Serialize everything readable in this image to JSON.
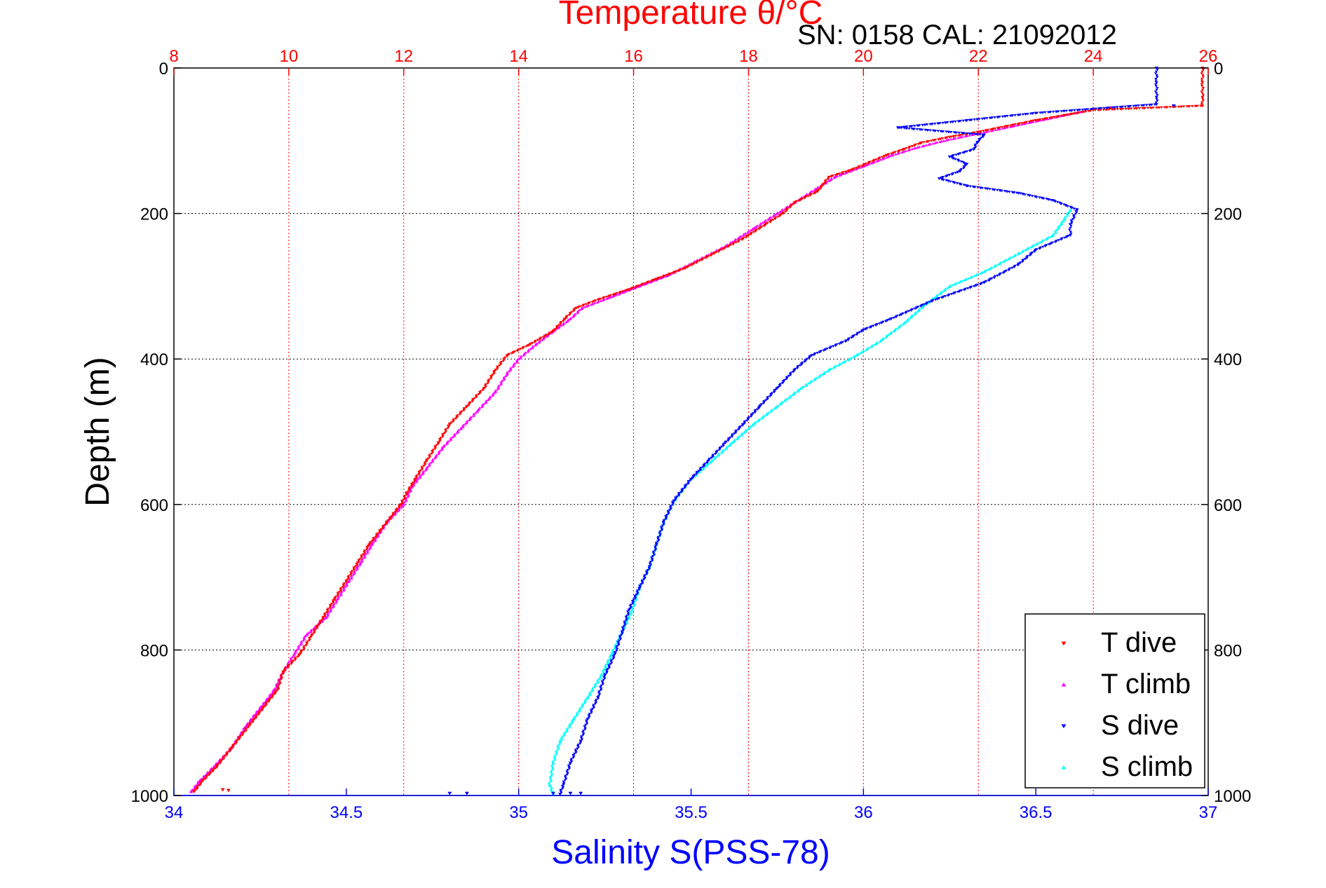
{
  "colors": {
    "temperature_axis": "#ff0000",
    "salinity_axis": "#0000ff",
    "depth_axis": "#000000",
    "temp_grid": "#ff0000",
    "depth_grid": "#000000",
    "t_dive": "#ff0000",
    "t_climb": "#ff00ff",
    "s_dive": "#0000ff",
    "s_climb": "#00ffff"
  },
  "header": {
    "serial_text": "SN: 0158  CAL: 21092012"
  },
  "chart_data": {
    "type": "scatter",
    "title": "Temperature θ/°C",
    "ylabel": "Depth (m)",
    "y_reversed": true,
    "ylim": [
      0,
      1000
    ],
    "y_ticks": [
      0,
      200,
      400,
      600,
      800,
      1000
    ],
    "y_tick_labels": [
      "0",
      "200",
      "400",
      "600",
      "800",
      "1000"
    ],
    "top_axis": {
      "label": "Temperature θ/°C",
      "lim": [
        8,
        26
      ],
      "ticks": [
        8,
        10,
        12,
        14,
        16,
        18,
        20,
        22,
        24,
        26
      ],
      "tick_labels": [
        "8",
        "10",
        "12",
        "14",
        "16",
        "18",
        "20",
        "22",
        "24",
        "26"
      ]
    },
    "bottom_axis": {
      "label": "Salinity S(PSS-78)",
      "lim": [
        34,
        37
      ],
      "ticks": [
        34,
        34.5,
        35,
        35.5,
        36,
        36.5,
        37
      ],
      "tick_labels": [
        "34",
        "34.5",
        "35",
        "35.5",
        "36",
        "36.5",
        "37"
      ]
    },
    "legend": {
      "position": "bottom-right",
      "entries": [
        "T dive",
        "T climb",
        "S dive",
        "S climb"
      ]
    },
    "series": [
      {
        "name": "T dive",
        "axis": "top",
        "marker": "triangle-down",
        "points": [
          [
            25.9,
            0
          ],
          [
            25.9,
            20
          ],
          [
            25.9,
            40
          ],
          [
            25.9,
            52
          ],
          [
            24.0,
            58
          ],
          [
            23.5,
            65
          ],
          [
            23.0,
            72
          ],
          [
            22.5,
            80
          ],
          [
            22.0,
            88
          ],
          [
            21.5,
            95
          ],
          [
            21.0,
            103
          ],
          [
            20.7,
            112
          ],
          [
            20.4,
            120
          ],
          [
            20.1,
            130
          ],
          [
            19.8,
            140
          ],
          [
            19.4,
            150
          ],
          [
            19.3,
            160
          ],
          [
            19.2,
            170
          ],
          [
            18.8,
            185
          ],
          [
            18.6,
            200
          ],
          [
            18.3,
            215
          ],
          [
            17.9,
            235
          ],
          [
            17.4,
            255
          ],
          [
            16.9,
            275
          ],
          [
            16.4,
            290
          ],
          [
            15.9,
            305
          ],
          [
            15.4,
            318
          ],
          [
            15.0,
            330
          ],
          [
            14.8,
            345
          ],
          [
            14.6,
            362
          ],
          [
            14.2,
            380
          ],
          [
            13.8,
            395
          ],
          [
            13.6,
            415
          ],
          [
            13.4,
            440
          ],
          [
            13.1,
            465
          ],
          [
            12.8,
            490
          ],
          [
            12.6,
            515
          ],
          [
            12.4,
            540
          ],
          [
            12.2,
            565
          ],
          [
            12.05,
            585
          ],
          [
            11.95,
            600
          ],
          [
            11.7,
            625
          ],
          [
            11.4,
            655
          ],
          [
            11.2,
            680
          ],
          [
            11.0,
            705
          ],
          [
            10.8,
            730
          ],
          [
            10.6,
            755
          ],
          [
            10.4,
            780
          ],
          [
            10.2,
            805
          ],
          [
            9.9,
            830
          ],
          [
            9.8,
            855
          ],
          [
            9.55,
            880
          ],
          [
            9.3,
            905
          ],
          [
            9.0,
            935
          ],
          [
            8.75,
            960
          ],
          [
            8.5,
            980
          ],
          [
            8.35,
            995
          ]
        ],
        "outliers": [
          [
            24.3,
            55
          ],
          [
            8.85,
            992
          ],
          [
            8.95,
            993
          ]
        ]
      },
      {
        "name": "T climb",
        "axis": "top",
        "marker": "triangle-up",
        "points": [
          [
            23.8,
            60
          ],
          [
            23.2,
            70
          ],
          [
            22.6,
            80
          ],
          [
            22.0,
            90
          ],
          [
            21.4,
            100
          ],
          [
            20.9,
            110
          ],
          [
            20.5,
            120
          ],
          [
            20.0,
            135
          ],
          [
            19.5,
            150
          ],
          [
            19.2,
            165
          ],
          [
            18.9,
            180
          ],
          [
            18.5,
            200
          ],
          [
            18.1,
            220
          ],
          [
            17.6,
            245
          ],
          [
            17.1,
            265
          ],
          [
            16.6,
            285
          ],
          [
            16.1,
            300
          ],
          [
            15.6,
            315
          ],
          [
            15.1,
            330
          ],
          [
            14.9,
            345
          ],
          [
            14.6,
            362
          ],
          [
            14.3,
            380
          ],
          [
            14.0,
            400
          ],
          [
            13.8,
            420
          ],
          [
            13.6,
            445
          ],
          [
            13.3,
            470
          ],
          [
            13.0,
            495
          ],
          [
            12.7,
            520
          ],
          [
            12.4,
            550
          ],
          [
            12.15,
            575
          ],
          [
            12.0,
            600
          ],
          [
            11.7,
            625
          ],
          [
            11.45,
            655
          ],
          [
            11.25,
            680
          ],
          [
            11.05,
            705
          ],
          [
            10.85,
            730
          ],
          [
            10.65,
            755
          ],
          [
            10.3,
            780
          ],
          [
            10.1,
            805
          ],
          [
            9.9,
            830
          ],
          [
            9.75,
            855
          ],
          [
            9.5,
            880
          ],
          [
            9.25,
            905
          ],
          [
            9.0,
            935
          ],
          [
            8.7,
            960
          ],
          [
            8.45,
            980
          ],
          [
            8.3,
            995
          ]
        ]
      },
      {
        "name": "S dive",
        "axis": "bottom",
        "marker": "triangle-down",
        "points": [
          [
            36.85,
            0
          ],
          [
            36.85,
            20
          ],
          [
            36.85,
            40
          ],
          [
            36.85,
            50
          ],
          [
            36.5,
            62
          ],
          [
            36.3,
            72
          ],
          [
            36.1,
            82
          ],
          [
            36.35,
            92
          ],
          [
            36.33,
            102
          ],
          [
            36.32,
            112
          ],
          [
            36.25,
            122
          ],
          [
            36.3,
            132
          ],
          [
            36.28,
            142
          ],
          [
            36.22,
            152
          ],
          [
            36.3,
            162
          ],
          [
            36.45,
            172
          ],
          [
            36.55,
            182
          ],
          [
            36.62,
            195
          ],
          [
            36.6,
            215
          ],
          [
            36.6,
            230
          ],
          [
            36.5,
            250
          ],
          [
            36.45,
            270
          ],
          [
            36.35,
            295
          ],
          [
            36.2,
            320
          ],
          [
            36.08,
            345
          ],
          [
            36.0,
            360
          ],
          [
            35.95,
            375
          ],
          [
            35.85,
            395
          ],
          [
            35.8,
            415
          ],
          [
            35.75,
            440
          ],
          [
            35.7,
            465
          ],
          [
            35.65,
            490
          ],
          [
            35.6,
            515
          ],
          [
            35.55,
            540
          ],
          [
            35.5,
            565
          ],
          [
            35.45,
            595
          ],
          [
            35.42,
            625
          ],
          [
            35.4,
            655
          ],
          [
            35.38,
            685
          ],
          [
            35.35,
            715
          ],
          [
            35.32,
            745
          ],
          [
            35.3,
            775
          ],
          [
            35.28,
            805
          ],
          [
            35.25,
            835
          ],
          [
            35.23,
            865
          ],
          [
            35.2,
            895
          ],
          [
            35.18,
            925
          ],
          [
            35.15,
            955
          ],
          [
            35.13,
            985
          ],
          [
            35.12,
            998
          ]
        ],
        "outliers": [
          [
            36.9,
            52
          ],
          [
            34.8,
            997
          ],
          [
            34.85,
            997
          ],
          [
            35.1,
            997
          ],
          [
            35.15,
            997
          ],
          [
            35.18,
            997
          ]
        ]
      },
      {
        "name": "S climb",
        "axis": "bottom",
        "marker": "triangle-up",
        "points": [
          [
            36.6,
            195
          ],
          [
            36.58,
            210
          ],
          [
            36.55,
            230
          ],
          [
            36.45,
            255
          ],
          [
            36.35,
            280
          ],
          [
            36.25,
            300
          ],
          [
            36.18,
            325
          ],
          [
            36.12,
            350
          ],
          [
            36.05,
            375
          ],
          [
            35.98,
            395
          ],
          [
            35.9,
            415
          ],
          [
            35.82,
            440
          ],
          [
            35.75,
            465
          ],
          [
            35.68,
            490
          ],
          [
            35.62,
            515
          ],
          [
            35.56,
            540
          ],
          [
            35.5,
            565
          ],
          [
            35.45,
            595
          ],
          [
            35.42,
            625
          ],
          [
            35.4,
            655
          ],
          [
            35.38,
            685
          ],
          [
            35.35,
            715
          ],
          [
            35.33,
            745
          ],
          [
            35.3,
            775
          ],
          [
            35.27,
            805
          ],
          [
            35.24,
            835
          ],
          [
            35.2,
            865
          ],
          [
            35.16,
            895
          ],
          [
            35.12,
            925
          ],
          [
            35.1,
            955
          ],
          [
            35.09,
            985
          ],
          [
            35.1,
            998
          ]
        ]
      }
    ]
  }
}
